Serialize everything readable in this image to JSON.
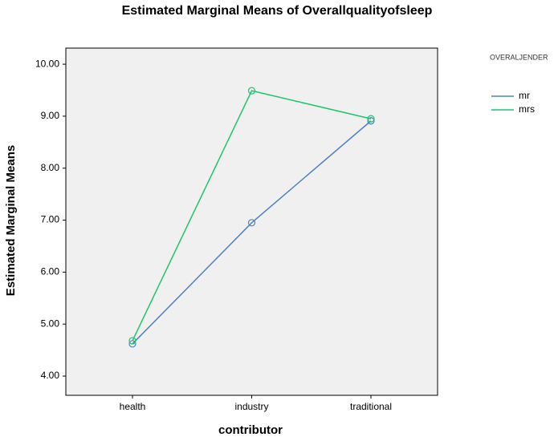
{
  "chart_data": {
    "type": "line",
    "title": "Estimated Marginal Means of Overallqualityofsleep",
    "x_label": "contributor",
    "y_label": "Estimated Marginal Means",
    "categories": [
      "health",
      "industry",
      "traditional"
    ],
    "series": [
      {
        "name": "mr",
        "color": "#4f81bd",
        "values": [
          4.62,
          6.95,
          8.91
        ]
      },
      {
        "name": "mrs",
        "color": "#1fc56b",
        "values": [
          4.68,
          9.49,
          8.95
        ]
      }
    ],
    "ylim": [
      3.63,
      10.31
    ],
    "yticks": [
      {
        "value": 4,
        "label": "4.00"
      },
      {
        "value": 5,
        "label": "5.00"
      },
      {
        "value": 6,
        "label": "6.00"
      },
      {
        "value": 7,
        "label": "7.00"
      },
      {
        "value": 8,
        "label": "8.00"
      },
      {
        "value": 9,
        "label": "9.00"
      },
      {
        "value": 10,
        "label": "10.00"
      }
    ],
    "legend_title": "OVERALJENDER",
    "legend_position": "right"
  }
}
